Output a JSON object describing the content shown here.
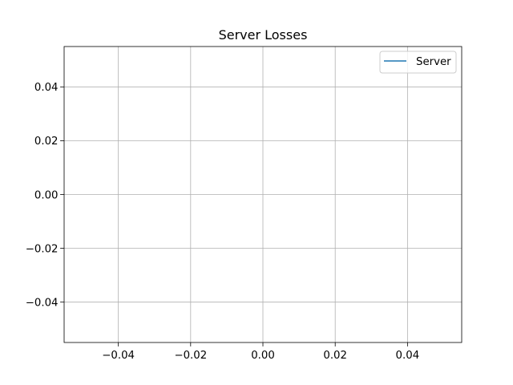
{
  "chart_data": {
    "type": "line",
    "title": "Server Losses",
    "xlabel": "",
    "ylabel": "",
    "xlim": [
      -0.055,
      0.055
    ],
    "ylim": [
      -0.055,
      0.055
    ],
    "x_ticks": [
      -0.04,
      -0.02,
      0.0,
      0.02,
      0.04
    ],
    "x_tick_labels": [
      "−0.04",
      "−0.02",
      "0.00",
      "0.02",
      "0.04"
    ],
    "y_ticks": [
      -0.04,
      -0.02,
      0.0,
      0.02,
      0.04
    ],
    "y_tick_labels": [
      "−0.04",
      "−0.02",
      "0.00",
      "0.02",
      "0.04"
    ],
    "grid": true,
    "legend_position": "top-right",
    "series": [
      {
        "name": "Server",
        "color": "#1f77b4",
        "x": [],
        "y": []
      }
    ]
  }
}
